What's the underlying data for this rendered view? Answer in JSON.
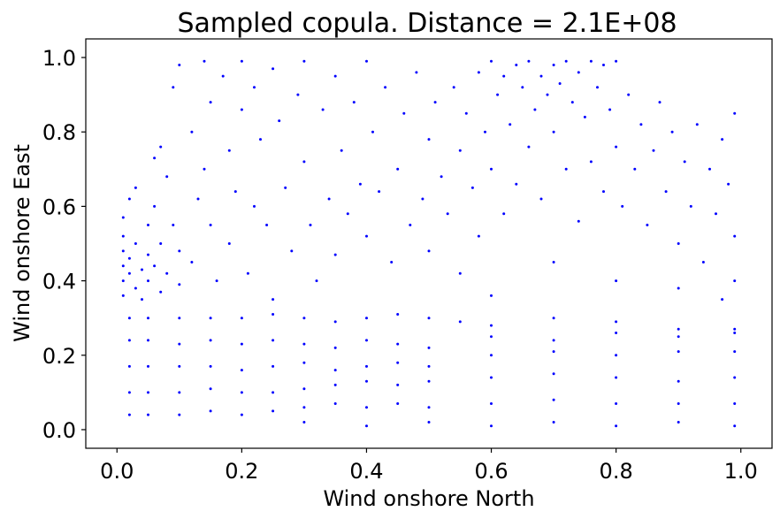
{
  "chart_data": {
    "type": "scatter",
    "title": "Sampled copula. Distance = 2.1E+08",
    "xlabel": "Wind onshore North",
    "ylabel": "Wind onshore East",
    "xlim": [
      -0.05,
      1.05
    ],
    "ylim": [
      -0.05,
      1.05
    ],
    "xticks": [
      0.0,
      0.2,
      0.4,
      0.6,
      0.8,
      1.0
    ],
    "yticks": [
      0.0,
      0.2,
      0.4,
      0.6,
      0.8,
      1.0
    ],
    "xtick_labels": [
      "0.0",
      "0.2",
      "0.4",
      "0.6",
      "0.8",
      "1.0"
    ],
    "ytick_labels": [
      "0.0",
      "0.2",
      "0.4",
      "0.6",
      "0.8",
      "1.0"
    ],
    "grid": false,
    "legend": "none",
    "marker_color": "#0000ff",
    "marker_size": 1.5,
    "series": [
      {
        "points": [
          [
            0.01,
            0.57
          ],
          [
            0.01,
            0.52
          ],
          [
            0.01,
            0.48
          ],
          [
            0.01,
            0.44
          ],
          [
            0.01,
            0.4
          ],
          [
            0.01,
            0.36
          ],
          [
            0.02,
            0.62
          ],
          [
            0.02,
            0.46
          ],
          [
            0.02,
            0.42
          ],
          [
            0.02,
            0.3
          ],
          [
            0.02,
            0.24
          ],
          [
            0.02,
            0.17
          ],
          [
            0.02,
            0.1
          ],
          [
            0.02,
            0.04
          ],
          [
            0.03,
            0.65
          ],
          [
            0.03,
            0.5
          ],
          [
            0.03,
            0.38
          ],
          [
            0.04,
            0.43
          ],
          [
            0.04,
            0.35
          ],
          [
            0.05,
            0.55
          ],
          [
            0.05,
            0.47
          ],
          [
            0.05,
            0.4
          ],
          [
            0.06,
            0.73
          ],
          [
            0.06,
            0.6
          ],
          [
            0.06,
            0.44
          ],
          [
            0.07,
            0.76
          ],
          [
            0.07,
            0.5
          ],
          [
            0.07,
            0.37
          ],
          [
            0.08,
            0.68
          ],
          [
            0.08,
            0.42
          ],
          [
            0.09,
            0.92
          ],
          [
            0.09,
            0.55
          ],
          [
            0.1,
            0.98
          ],
          [
            0.1,
            0.48
          ],
          [
            0.1,
            0.39
          ],
          [
            0.12,
            0.8
          ],
          [
            0.12,
            0.45
          ],
          [
            0.13,
            0.62
          ],
          [
            0.14,
            0.99
          ],
          [
            0.14,
            0.7
          ],
          [
            0.15,
            0.88
          ],
          [
            0.15,
            0.55
          ],
          [
            0.16,
            0.4
          ],
          [
            0.17,
            0.95
          ],
          [
            0.18,
            0.75
          ],
          [
            0.18,
            0.5
          ],
          [
            0.19,
            0.64
          ],
          [
            0.2,
            0.99
          ],
          [
            0.2,
            0.86
          ],
          [
            0.21,
            0.42
          ],
          [
            0.22,
            0.92
          ],
          [
            0.22,
            0.6
          ],
          [
            0.23,
            0.78
          ],
          [
            0.24,
            0.55
          ],
          [
            0.25,
            0.97
          ],
          [
            0.25,
            0.35
          ],
          [
            0.26,
            0.83
          ],
          [
            0.27,
            0.65
          ],
          [
            0.28,
            0.48
          ],
          [
            0.29,
            0.9
          ],
          [
            0.3,
            0.99
          ],
          [
            0.3,
            0.72
          ],
          [
            0.31,
            0.55
          ],
          [
            0.32,
            0.4
          ],
          [
            0.33,
            0.86
          ],
          [
            0.34,
            0.62
          ],
          [
            0.35,
            0.95
          ],
          [
            0.35,
            0.47
          ],
          [
            0.36,
            0.75
          ],
          [
            0.37,
            0.58
          ],
          [
            0.38,
            0.88
          ],
          [
            0.39,
            0.66
          ],
          [
            0.4,
            0.99
          ],
          [
            0.4,
            0.52
          ],
          [
            0.41,
            0.8
          ],
          [
            0.42,
            0.64
          ],
          [
            0.43,
            0.92
          ],
          [
            0.44,
            0.45
          ],
          [
            0.45,
            0.7
          ],
          [
            0.46,
            0.85
          ],
          [
            0.47,
            0.55
          ],
          [
            0.48,
            0.96
          ],
          [
            0.49,
            0.62
          ],
          [
            0.5,
            0.78
          ],
          [
            0.5,
            0.48
          ],
          [
            0.51,
            0.88
          ],
          [
            0.52,
            0.68
          ],
          [
            0.53,
            0.58
          ],
          [
            0.54,
            0.92
          ],
          [
            0.55,
            0.75
          ],
          [
            0.55,
            0.42
          ],
          [
            0.56,
            0.85
          ],
          [
            0.57,
            0.65
          ],
          [
            0.58,
            0.96
          ],
          [
            0.58,
            0.52
          ],
          [
            0.59,
            0.8
          ],
          [
            0.6,
            0.99
          ],
          [
            0.6,
            0.7
          ],
          [
            0.61,
            0.9
          ],
          [
            0.62,
            0.58
          ],
          [
            0.62,
            0.95
          ],
          [
            0.63,
            0.82
          ],
          [
            0.64,
            0.98
          ],
          [
            0.64,
            0.66
          ],
          [
            0.65,
            0.92
          ],
          [
            0.66,
            0.76
          ],
          [
            0.66,
            0.99
          ],
          [
            0.67,
            0.86
          ],
          [
            0.68,
            0.95
          ],
          [
            0.68,
            0.62
          ],
          [
            0.69,
            0.9
          ],
          [
            0.7,
            0.98
          ],
          [
            0.7,
            0.8
          ],
          [
            0.71,
            0.93
          ],
          [
            0.72,
            0.7
          ],
          [
            0.72,
            0.99
          ],
          [
            0.73,
            0.88
          ],
          [
            0.74,
            0.96
          ],
          [
            0.74,
            0.56
          ],
          [
            0.75,
            0.84
          ],
          [
            0.76,
            0.99
          ],
          [
            0.76,
            0.72
          ],
          [
            0.77,
            0.92
          ],
          [
            0.78,
            0.98
          ],
          [
            0.78,
            0.64
          ],
          [
            0.79,
            0.86
          ],
          [
            0.8,
            0.99
          ],
          [
            0.8,
            0.76
          ],
          [
            0.81,
            0.6
          ],
          [
            0.82,
            0.9
          ],
          [
            0.83,
            0.7
          ],
          [
            0.84,
            0.82
          ],
          [
            0.85,
            0.55
          ],
          [
            0.86,
            0.75
          ],
          [
            0.87,
            0.88
          ],
          [
            0.88,
            0.64
          ],
          [
            0.89,
            0.8
          ],
          [
            0.9,
            0.5
          ],
          [
            0.91,
            0.72
          ],
          [
            0.92,
            0.6
          ],
          [
            0.93,
            0.82
          ],
          [
            0.94,
            0.45
          ],
          [
            0.95,
            0.7
          ],
          [
            0.96,
            0.58
          ],
          [
            0.97,
            0.78
          ],
          [
            0.98,
            0.66
          ],
          [
            0.99,
            0.85
          ],
          [
            0.99,
            0.52
          ],
          [
            0.99,
            0.4
          ],
          [
            0.97,
            0.35
          ],
          [
            0.9,
            0.38
          ],
          [
            0.8,
            0.4
          ],
          [
            0.7,
            0.45
          ],
          [
            0.6,
            0.36
          ],
          [
            0.05,
            0.3
          ],
          [
            0.1,
            0.3
          ],
          [
            0.15,
            0.3
          ],
          [
            0.2,
            0.3
          ],
          [
            0.25,
            0.31
          ],
          [
            0.3,
            0.3
          ],
          [
            0.35,
            0.29
          ],
          [
            0.4,
            0.3
          ],
          [
            0.45,
            0.31
          ],
          [
            0.5,
            0.3
          ],
          [
            0.55,
            0.29
          ],
          [
            0.6,
            0.28
          ],
          [
            0.7,
            0.3
          ],
          [
            0.8,
            0.29
          ],
          [
            0.9,
            0.27
          ],
          [
            0.99,
            0.27
          ],
          [
            0.05,
            0.24
          ],
          [
            0.1,
            0.23
          ],
          [
            0.15,
            0.24
          ],
          [
            0.2,
            0.23
          ],
          [
            0.25,
            0.24
          ],
          [
            0.3,
            0.23
          ],
          [
            0.35,
            0.22
          ],
          [
            0.4,
            0.24
          ],
          [
            0.45,
            0.23
          ],
          [
            0.5,
            0.22
          ],
          [
            0.6,
            0.25
          ],
          [
            0.7,
            0.24
          ],
          [
            0.8,
            0.26
          ],
          [
            0.9,
            0.25
          ],
          [
            0.99,
            0.26
          ],
          [
            0.05,
            0.17
          ],
          [
            0.1,
            0.17
          ],
          [
            0.15,
            0.17
          ],
          [
            0.2,
            0.16
          ],
          [
            0.25,
            0.17
          ],
          [
            0.3,
            0.18
          ],
          [
            0.35,
            0.16
          ],
          [
            0.4,
            0.17
          ],
          [
            0.45,
            0.18
          ],
          [
            0.5,
            0.17
          ],
          [
            0.6,
            0.2
          ],
          [
            0.7,
            0.21
          ],
          [
            0.8,
            0.2
          ],
          [
            0.9,
            0.21
          ],
          [
            0.99,
            0.21
          ],
          [
            0.05,
            0.1
          ],
          [
            0.1,
            0.1
          ],
          [
            0.15,
            0.11
          ],
          [
            0.2,
            0.1
          ],
          [
            0.25,
            0.1
          ],
          [
            0.3,
            0.11
          ],
          [
            0.35,
            0.12
          ],
          [
            0.4,
            0.13
          ],
          [
            0.45,
            0.12
          ],
          [
            0.5,
            0.13
          ],
          [
            0.6,
            0.14
          ],
          [
            0.7,
            0.15
          ],
          [
            0.8,
            0.14
          ],
          [
            0.9,
            0.13
          ],
          [
            0.99,
            0.14
          ],
          [
            0.05,
            0.04
          ],
          [
            0.1,
            0.04
          ],
          [
            0.15,
            0.05
          ],
          [
            0.2,
            0.04
          ],
          [
            0.25,
            0.05
          ],
          [
            0.3,
            0.06
          ],
          [
            0.35,
            0.07
          ],
          [
            0.4,
            0.06
          ],
          [
            0.45,
            0.07
          ],
          [
            0.5,
            0.06
          ],
          [
            0.6,
            0.07
          ],
          [
            0.7,
            0.08
          ],
          [
            0.8,
            0.07
          ],
          [
            0.9,
            0.07
          ],
          [
            0.99,
            0.07
          ],
          [
            0.3,
            0.02
          ],
          [
            0.4,
            0.01
          ],
          [
            0.5,
            0.02
          ],
          [
            0.6,
            0.01
          ],
          [
            0.7,
            0.02
          ],
          [
            0.8,
            0.01
          ],
          [
            0.9,
            0.02
          ],
          [
            0.99,
            0.01
          ]
        ]
      }
    ]
  }
}
